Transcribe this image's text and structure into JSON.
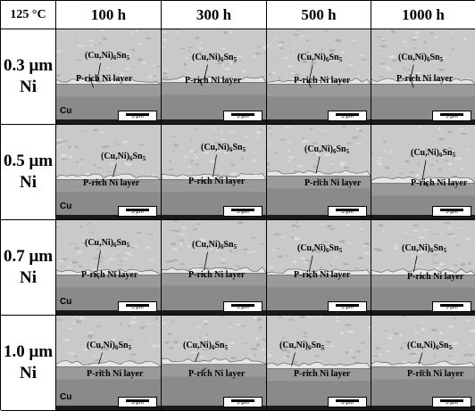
{
  "header": {
    "corner": "125 °C",
    "columns": [
      "100 h",
      "300 h",
      "500 h",
      "1000 h"
    ]
  },
  "rows": [
    {
      "thickness": "0.3 μm",
      "metal": "Ni"
    },
    {
      "thickness": "0.5 μm",
      "metal": "Ni"
    },
    {
      "thickness": "0.7 μm",
      "metal": "Ni"
    },
    {
      "thickness": "1.0 μm",
      "metal": "Ni"
    }
  ],
  "labels": {
    "imc_prefix": "(Cu,Ni)",
    "imc_sub1": "6",
    "imc_mid": "Sn",
    "imc_sub2": "5",
    "p_rich": "P-rich Ni layer",
    "cu": "Cu",
    "scale": "5 μm"
  },
  "colors": {
    "solder": "#c9c9c9",
    "ni_layer": "#9a9a9a",
    "cu": "#8a8a8a",
    "imc": "#e6e6e6"
  }
}
